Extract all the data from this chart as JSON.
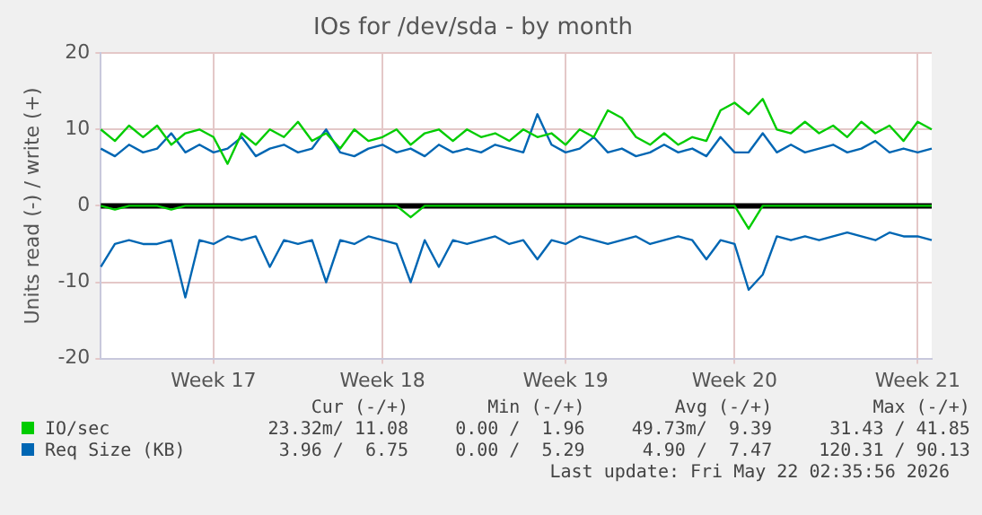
{
  "chart_data": {
    "type": "line",
    "title": "IOs for /dev/sda - by month",
    "ylabel": "Units read (-) / write (+)",
    "categories": [
      null,
      null,
      null,
      null,
      null,
      null,
      null,
      null,
      "Week 17",
      null,
      null,
      null,
      null,
      null,
      null,
      null,
      null,
      null,
      null,
      null,
      "Week 18",
      null,
      null,
      null,
      null,
      null,
      null,
      null,
      null,
      null,
      null,
      null,
      null,
      "Week 19",
      null,
      null,
      null,
      null,
      null,
      null,
      null,
      null,
      null,
      null,
      null,
      "Week 20",
      null,
      null,
      null,
      null,
      null,
      null,
      null,
      null,
      null,
      null,
      null,
      null,
      "Week 21",
      null
    ],
    "series": [
      {
        "name": "IO/sec",
        "color": "#00cc00",
        "values": [
          10,
          8.5,
          10.5,
          9,
          10.5,
          8,
          9.5,
          10,
          9,
          5.5,
          9.5,
          8,
          10,
          9,
          11,
          8.5,
          9.5,
          7.5,
          10,
          8.5,
          9,
          10,
          8,
          9.5,
          10,
          8.5,
          10,
          9,
          9.5,
          8.5,
          10,
          9,
          9.5,
          8,
          10,
          9,
          12.5,
          11.5,
          9,
          8,
          9.5,
          8,
          9,
          8.5,
          12.5,
          13.5,
          12,
          14,
          10,
          9.5,
          11,
          9.5,
          10.5,
          9,
          11,
          9.5,
          10.5,
          8.5,
          11,
          10
        ]
      },
      {
        "color": "#00cc00",
        "values": [
          0,
          -0.5,
          0,
          0,
          0,
          -0.5,
          0,
          0,
          0,
          0,
          0,
          0,
          0,
          0,
          0,
          0,
          0,
          0,
          0,
          0,
          0,
          0,
          -1.5,
          0,
          0,
          0,
          0,
          0,
          0,
          0,
          0,
          0,
          0,
          0,
          0,
          0,
          0,
          0,
          0,
          0,
          0,
          0,
          0,
          0,
          0,
          0,
          -3,
          0,
          0,
          0,
          0,
          0,
          0,
          0,
          0,
          0,
          0,
          0,
          0,
          0
        ]
      },
      {
        "name": "Req Size (KB)",
        "color": "#0066b3",
        "values": [
          7.5,
          6.5,
          8,
          7,
          7.5,
          9.5,
          7,
          8,
          7,
          7.5,
          9,
          6.5,
          7.5,
          8,
          7,
          7.5,
          10,
          7,
          6.5,
          7.5,
          8,
          7,
          7.5,
          6.5,
          8,
          7,
          7.5,
          7,
          8,
          7.5,
          7,
          12,
          8,
          7,
          7.5,
          9,
          7,
          7.5,
          6.5,
          7,
          8,
          7,
          7.5,
          6.5,
          9,
          7,
          7,
          9.5,
          7,
          8,
          7,
          7.5,
          8,
          7,
          7.5,
          8.5,
          7,
          7.5,
          7,
          7.5
        ]
      },
      {
        "color": "#0066b3",
        "values": [
          -8,
          -5,
          -4.5,
          -5,
          -5,
          -4.5,
          -12,
          -4.5,
          -5,
          -4,
          -4.5,
          -4,
          -8,
          -4.5,
          -5,
          -4.5,
          -10,
          -4.5,
          -5,
          -4,
          -4.5,
          -5,
          -10,
          -4.5,
          -8,
          -4.5,
          -5,
          -4.5,
          -4,
          -5,
          -4.5,
          -7,
          -4.5,
          -5,
          -4,
          -4.5,
          -5,
          -4.5,
          -4,
          -5,
          -4.5,
          -4,
          -4.5,
          -7,
          -4.5,
          -5,
          -11,
          -9,
          -4,
          -4.5,
          -4,
          -4.5,
          -4,
          -3.5,
          -4,
          -4.5,
          -3.5,
          -4,
          -4,
          -4.5
        ]
      }
    ],
    "ylim": [
      -20,
      20
    ],
    "yticks": [
      -20,
      -10,
      0,
      10,
      20
    ],
    "ref_lines": [
      {
        "axis": "y",
        "value": 0,
        "color": "#000000"
      }
    ],
    "grid": true,
    "legend": "bottom",
    "marker": "none",
    "line_style": "solid",
    "annotations": [
      "Cur (-/+)",
      "Min (-/+)",
      "Avg (-/+)",
      "Max (-/+)",
      "23.32m/ 11.08",
      "0.00 /  1.96",
      "49.73m/  9.39",
      "31.43 / 41.85",
      "3.96 /  6.75",
      "0.00 /  5.29",
      "4.90 /  7.47",
      "120.31 / 90.13",
      "Last update: Fri May 22 02:35:56 2026"
    ]
  }
}
